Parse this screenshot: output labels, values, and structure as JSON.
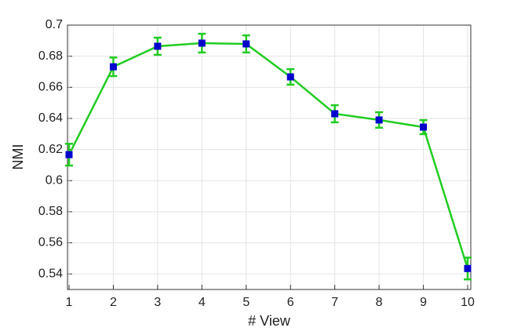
{
  "chart_data": {
    "type": "line",
    "x": [
      1,
      2,
      3,
      4,
      5,
      6,
      7,
      8,
      9,
      10
    ],
    "series": [
      {
        "color": "#22cc22",
        "marker_color": "#0000cc",
        "values": [
          0.6167,
          0.6732,
          0.6864,
          0.6884,
          0.6879,
          0.6667,
          0.643,
          0.639,
          0.6344,
          0.5435
        ],
        "errors": [
          0.007,
          0.006,
          0.0055,
          0.006,
          0.0055,
          0.005,
          0.0055,
          0.005,
          0.0045,
          0.007
        ]
      }
    ],
    "xlabel": "# View",
    "ylabel": "NMI",
    "xlim": [
      1,
      10
    ],
    "xticks": [
      1,
      2,
      3,
      4,
      5,
      6,
      7,
      8,
      9,
      10
    ],
    "ylim": [
      0.53,
      0.7
    ],
    "yticks": [
      0.54,
      0.56,
      0.58,
      0.6,
      0.62,
      0.64,
      0.66,
      0.68,
      0.7
    ],
    "grid": true
  }
}
